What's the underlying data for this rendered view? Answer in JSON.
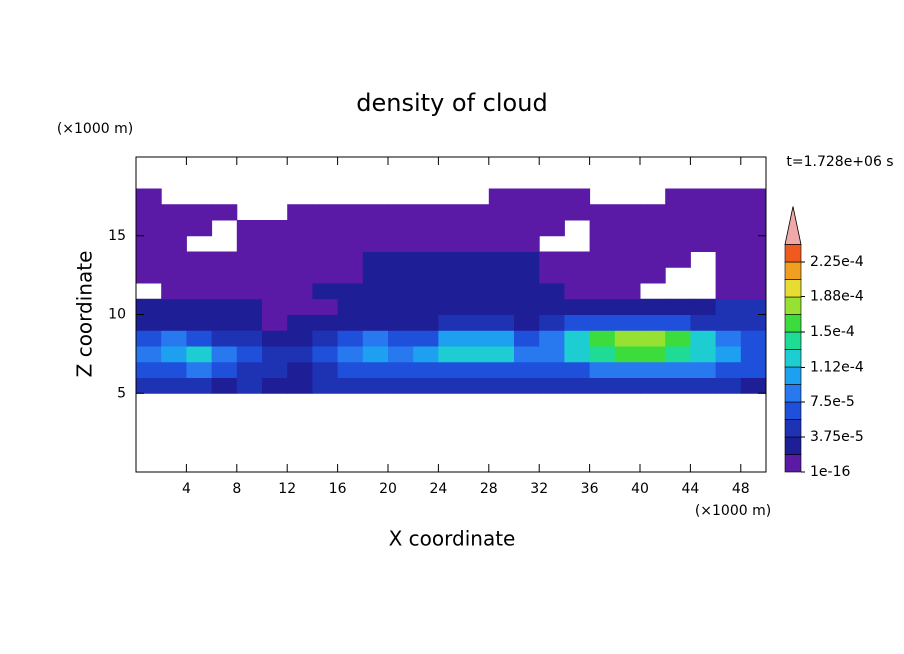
{
  "chart_data": {
    "type": "contour",
    "title": "density of cloud",
    "x_label": "X coordinate",
    "y_label": "Z coordinate",
    "x_unit": "(×1000 m)",
    "y_unit": "(×1000 m)",
    "annotation": "t=1.728e+06 s",
    "xlim": [
      0,
      50
    ],
    "ylim": [
      0,
      20
    ],
    "xticks": [
      4,
      8,
      12,
      16,
      20,
      24,
      28,
      32,
      36,
      40,
      44,
      48
    ],
    "yticks": [
      5,
      10,
      15
    ],
    "x": [
      1,
      3,
      5,
      7,
      9,
      11,
      13,
      15,
      17,
      19,
      21,
      23,
      25,
      27,
      29,
      31,
      33,
      35,
      37,
      39,
      41,
      43,
      45,
      47,
      49
    ],
    "y": [
      5.5,
      6.5,
      7.5,
      8.5,
      9.5,
      10.5,
      11.5,
      12.5,
      13.5,
      14.5,
      15.5,
      16.5,
      17.5
    ],
    "z": [
      [
        4e-05,
        4e-05,
        4e-05,
        3e-05,
        4e-05,
        3e-05,
        2e-05,
        4e-05,
        4e-05,
        4e-05,
        4e-05,
        4e-05,
        4e-05,
        4e-05,
        4e-05,
        4e-05,
        4e-05,
        4e-05,
        4e-05,
        4e-05,
        4e-05,
        4e-05,
        4e-05,
        4e-05,
        3e-05
      ],
      [
        6e-05,
        7e-05,
        8e-05,
        6e-05,
        5e-05,
        4e-05,
        3e-05,
        5e-05,
        6e-05,
        6e-05,
        7e-05,
        7e-05,
        7e-05,
        7e-05,
        6e-05,
        6e-05,
        6e-05,
        7e-05,
        8e-05,
        8e-05,
        8e-05,
        8e-05,
        8e-05,
        7e-05,
        6e-05
      ],
      [
        9e-05,
        0.00011,
        0.00012,
        9e-05,
        6e-05,
        5e-05,
        4e-05,
        6e-05,
        8e-05,
        0.0001,
        8e-05,
        0.00011,
        0.00012,
        0.00013,
        0.00012,
        9e-05,
        8e-05,
        0.00012,
        0.00014,
        0.00015,
        0.00015,
        0.00014,
        0.00013,
        0.0001,
        7e-05
      ],
      [
        6e-05,
        8e-05,
        7e-05,
        5e-05,
        4e-05,
        3e-05,
        3e-05,
        4e-05,
        6e-05,
        8e-05,
        6e-05,
        7e-05,
        0.0001,
        0.00011,
        0.0001,
        7e-05,
        8e-05,
        0.00013,
        0.00015,
        0.00017,
        0.00017,
        0.00015,
        0.00013,
        9e-05,
        6e-05
      ],
      [
        3e-05,
        3e-05,
        3e-05,
        2e-05,
        2e-05,
        1e-05,
        2e-05,
        2e-05,
        2e-05,
        3e-05,
        3e-05,
        3e-05,
        4e-05,
        5e-05,
        4e-05,
        3e-05,
        4e-05,
        6e-05,
        7e-05,
        7e-05,
        7e-05,
        6e-05,
        5e-05,
        5e-05,
        4e-05
      ],
      [
        2e-05,
        2e-05,
        2e-05,
        2e-05,
        2e-05,
        1e-05,
        1e-05,
        1e-05,
        2e-05,
        2e-05,
        2e-05,
        2e-05,
        2e-05,
        2e-05,
        2e-05,
        2e-05,
        2e-05,
        3e-05,
        3e-05,
        3e-05,
        3e-05,
        3e-05,
        3e-05,
        4e-05,
        4e-05
      ],
      [
        null,
        1e-05,
        1e-05,
        1e-05,
        1e-05,
        1e-05,
        1e-05,
        2e-05,
        2e-05,
        2e-05,
        2e-05,
        2e-05,
        2e-05,
        2e-05,
        2e-05,
        2e-05,
        2e-05,
        1e-05,
        1e-05,
        1e-05,
        null,
        null,
        null,
        1e-05,
        1e-05
      ],
      [
        1e-05,
        1e-05,
        1e-05,
        1e-05,
        1e-05,
        1e-05,
        1e-05,
        1e-05,
        1e-05,
        2e-05,
        2e-05,
        2e-05,
        2e-05,
        2e-05,
        2e-05,
        2e-05,
        1e-05,
        1e-05,
        1e-05,
        1e-05,
        1e-05,
        null,
        null,
        1e-05,
        1e-05
      ],
      [
        1e-05,
        1e-05,
        1e-05,
        1e-05,
        1e-05,
        1e-05,
        1e-05,
        1e-05,
        1e-05,
        2e-05,
        2e-05,
        2e-05,
        2e-05,
        2e-05,
        2e-05,
        2e-05,
        1e-05,
        1e-05,
        1e-05,
        1e-05,
        1e-05,
        1e-05,
        null,
        1e-05,
        1e-05
      ],
      [
        1e-05,
        1e-05,
        null,
        null,
        1e-05,
        1e-05,
        1e-05,
        1e-05,
        1e-05,
        1e-05,
        1e-05,
        1e-05,
        1e-05,
        1e-05,
        1e-05,
        1e-05,
        null,
        null,
        1e-05,
        1e-05,
        1e-05,
        1e-05,
        1e-05,
        1e-05,
        1e-05
      ],
      [
        1e-05,
        1e-05,
        1e-05,
        null,
        1e-05,
        1e-05,
        1e-05,
        1e-05,
        1e-05,
        1e-05,
        1e-05,
        1e-05,
        1e-05,
        1e-05,
        1e-05,
        1e-05,
        1e-05,
        null,
        1e-05,
        1e-05,
        1e-05,
        1e-05,
        1e-05,
        1e-05,
        1e-05
      ],
      [
        1e-05,
        1e-05,
        1e-05,
        1e-05,
        null,
        null,
        1e-05,
        1e-05,
        1e-05,
        1e-05,
        1e-05,
        1e-05,
        1e-05,
        1e-05,
        1e-05,
        1e-05,
        1e-05,
        1e-05,
        1e-05,
        1e-05,
        1e-05,
        1e-05,
        1e-05,
        1e-05,
        1e-05
      ],
      [
        1e-05,
        null,
        null,
        null,
        null,
        null,
        null,
        null,
        null,
        null,
        null,
        null,
        null,
        null,
        1e-05,
        1e-05,
        1e-05,
        1e-05,
        null,
        null,
        null,
        1e-05,
        1e-05,
        1e-05,
        1e-05
      ]
    ],
    "colorbar": {
      "levels": [
        1e-16,
        1.875e-05,
        3.75e-05,
        5.625e-05,
        7.5e-05,
        9.375e-05,
        0.0001125,
        0.00013125,
        0.00015,
        0.00016875,
        0.0001875,
        0.00020625,
        0.000225,
        0.00024375
      ],
      "colors": [
        "#5a1aa6",
        "#1e1e96",
        "#1e32b4",
        "#1e50dc",
        "#2878f0",
        "#1ea0f0",
        "#1ecdd2",
        "#1edc96",
        "#3cdc3c",
        "#96e132",
        "#e6dc32",
        "#f0a01e",
        "#f05a1e"
      ],
      "over_color": "#f0a8a8",
      "ticks": [
        1e-16,
        {
          "value": 3.75e-05,
          "label": "3.75e-5"
        },
        {
          "value": 7.5e-05,
          "label": "7.5e-5"
        },
        {
          "value": 0.000112,
          "label": "1.12e-4"
        },
        {
          "value": 0.00015,
          "label": "1.5e-4"
        },
        {
          "value": 0.000188,
          "label": "1.88e-4"
        },
        {
          "value": 0.000225,
          "label": "2.25e-4"
        }
      ]
    }
  }
}
